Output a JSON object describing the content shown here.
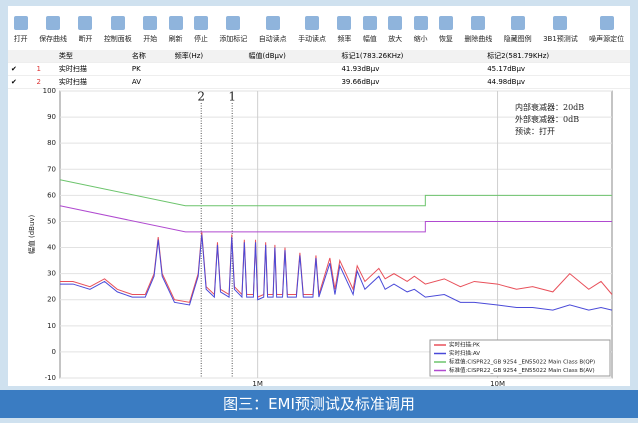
{
  "toolbar": [
    "打开",
    "保存曲线",
    "断开",
    "控制面板",
    "开始",
    "刷新",
    "停止",
    "添加标记",
    "自动读点",
    "手动读点",
    "频率",
    "幅值",
    "放大",
    "缩小",
    "恢复",
    "删除曲线",
    "隐藏图例",
    "3B1预测试",
    "噪声源定位"
  ],
  "table": {
    "headers": [
      "类型",
      "名称",
      "频率(Hz)",
      "幅值(dBµv)",
      "标记1(783.26KHz)",
      "标记2(581.79KHz)"
    ],
    "rows": [
      [
        "1",
        "实时扫描",
        "PK",
        "",
        "",
        "41.93dBµv",
        "45.17dBµv"
      ],
      [
        "2",
        "实时扫描",
        "AV",
        "",
        "",
        "39.66dBµv",
        "44.98dBµv"
      ]
    ]
  },
  "chart_data": {
    "type": "line",
    "xscale": "log",
    "grid": true,
    "legend": "lower right",
    "ylabel": "幅值 (dBuv)",
    "xlim": [
      0.15,
      30
    ],
    "ylim": [
      -10,
      100
    ],
    "xticks": [
      {
        "value": 1,
        "label": "1M"
      },
      {
        "value": 10,
        "label": "10M"
      }
    ],
    "yticks": [
      -10,
      0,
      10,
      20,
      30,
      40,
      50,
      60,
      70,
      80,
      90,
      100
    ],
    "annotations": [
      "内部衰减器：20dB",
      "外部衰减器：0dB",
      "预读：打开"
    ],
    "markers": [
      {
        "label": "1",
        "x": 0.78326
      },
      {
        "label": "2",
        "x": 0.58179
      }
    ],
    "series": [
      {
        "name": "实时扫描:PK",
        "color": "#e8505a",
        "x": [
          0.15,
          0.17,
          0.2,
          0.23,
          0.26,
          0.3,
          0.34,
          0.37,
          0.385,
          0.4,
          0.45,
          0.52,
          0.565,
          0.585,
          0.61,
          0.66,
          0.68,
          0.7,
          0.76,
          0.78,
          0.8,
          0.86,
          0.88,
          0.9,
          0.96,
          0.98,
          1.0,
          1.06,
          1.08,
          1.1,
          1.16,
          1.18,
          1.2,
          1.27,
          1.3,
          1.33,
          1.45,
          1.5,
          1.55,
          1.7,
          1.75,
          1.8,
          2.0,
          2.1,
          2.2,
          2.5,
          2.6,
          2.8,
          3.2,
          3.4,
          3.7,
          4.2,
          4.5,
          5,
          6,
          7,
          8,
          10,
          12,
          14,
          17,
          20,
          24,
          27,
          30
        ],
        "values": [
          27,
          27,
          25,
          28,
          24,
          22,
          22,
          30,
          44,
          30,
          20,
          19,
          30,
          46,
          25,
          22,
          42,
          24,
          22,
          45,
          25,
          22,
          43,
          22,
          22,
          43,
          21,
          22,
          42,
          22,
          22,
          41,
          22,
          22,
          40,
          22,
          22,
          38,
          22,
          22,
          37,
          22,
          36,
          24,
          35,
          24,
          33,
          27,
          32,
          28,
          30,
          27,
          29,
          26,
          28,
          25,
          27,
          26,
          24,
          25,
          23,
          30,
          24,
          27,
          22
        ]
      },
      {
        "name": "实时扫描:AV",
        "color": "#4a4ad8",
        "x": [
          0.15,
          0.17,
          0.2,
          0.23,
          0.26,
          0.3,
          0.34,
          0.37,
          0.385,
          0.4,
          0.45,
          0.52,
          0.565,
          0.585,
          0.61,
          0.66,
          0.68,
          0.7,
          0.76,
          0.78,
          0.8,
          0.86,
          0.88,
          0.9,
          0.96,
          0.98,
          1.0,
          1.06,
          1.08,
          1.1,
          1.16,
          1.18,
          1.2,
          1.27,
          1.3,
          1.33,
          1.45,
          1.5,
          1.55,
          1.7,
          1.75,
          1.8,
          2.0,
          2.1,
          2.2,
          2.5,
          2.6,
          2.8,
          3.2,
          3.4,
          3.7,
          4.2,
          4.5,
          5,
          6,
          7,
          8,
          10,
          12,
          14,
          17,
          20,
          24,
          27,
          30
        ],
        "values": [
          26,
          26,
          24,
          27,
          23,
          21,
          21,
          29,
          43,
          29,
          19,
          18,
          29,
          45,
          24,
          21,
          41,
          23,
          21,
          44,
          24,
          21,
          42,
          21,
          21,
          42,
          20,
          21,
          41,
          21,
          21,
          40,
          21,
          21,
          39,
          21,
          21,
          37,
          21,
          21,
          36,
          21,
          34,
          22,
          33,
          22,
          31,
          24,
          29,
          24,
          26,
          23,
          24,
          21,
          22,
          19,
          19,
          18,
          17,
          17,
          16,
          18,
          16,
          17,
          16
        ]
      },
      {
        "name": "标准值:CISPR22_GB 9254 _EN55022 Main Class B(QP)",
        "color": "#6cc46c",
        "x": [
          0.15,
          0.5,
          5,
          5,
          30
        ],
        "values": [
          66,
          56,
          56,
          60,
          60
        ]
      },
      {
        "name": "标准值:CISPR22_GB 9254 _EN55022 Main Class B(AV)",
        "color": "#b04ad0",
        "x": [
          0.15,
          0.5,
          5,
          5,
          30
        ],
        "values": [
          56,
          46,
          46,
          50,
          50
        ]
      }
    ]
  },
  "caption": "图三：EMI预测试及标准调用"
}
